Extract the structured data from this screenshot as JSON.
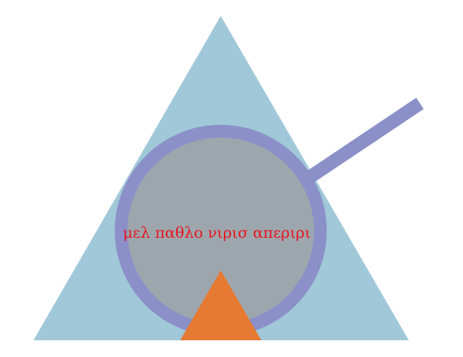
{
  "illustration": {
    "caption": "μελ παθλο νιρισ απεριρι",
    "colors": {
      "background": "#ffffff",
      "large_triangle": "#a0c8d8",
      "lens_ring": "#8b90c8",
      "lens_fill": "#9ea6ad",
      "handle": "#8b90c8",
      "small_triangle": "#e67a33",
      "caption_text": "#e8141c"
    }
  }
}
